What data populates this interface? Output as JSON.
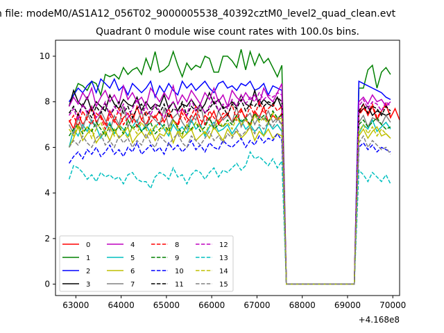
{
  "figure": {
    "suptitle": "n file: modeM0/AS1A12_056T02_9000005538_40392cztM0_level2_quad_clean.evt",
    "title": "Quadrant 0 module wise count rates with 100.0s bins.",
    "offset_text": "+4.168e8"
  },
  "chart_data": {
    "type": "line",
    "title": "Quadrant 0 module wise count rates with 100.0s bins.",
    "xlabel": "",
    "ylabel": "",
    "x_offset": 416800000,
    "xlim": [
      62550,
      70150
    ],
    "ylim": [
      -0.5,
      10.7
    ],
    "xticks": [
      63000,
      64000,
      65000,
      66000,
      67000,
      68000,
      69000,
      70000
    ],
    "xtick_labels": [
      "63000",
      "64000",
      "65000",
      "66000",
      "67000",
      "68000",
      "69000",
      "70000"
    ],
    "yticks": [
      0,
      2,
      4,
      6,
      8,
      10
    ],
    "ytick_labels": [
      "0",
      "2",
      "4",
      "6",
      "8",
      "10"
    ],
    "grid": false,
    "legend_position": "lower-left",
    "legend_columns": 4,
    "bin_seconds": 100,
    "x_start": 62850,
    "x_step": 100,
    "series": [
      {
        "name": "0",
        "color": "#ff0000",
        "dash": "solid",
        "values": [
          7.2,
          6.8,
          7.5,
          7.0,
          7.3,
          7.8,
          7.1,
          7.4,
          7.0,
          7.6,
          7.2,
          6.9,
          7.3,
          7.5,
          7.1,
          7.8,
          7.2,
          7.0,
          7.4,
          7.3,
          7.6,
          7.1,
          7.5,
          7.2,
          7.0,
          7.7,
          7.3,
          7.1,
          7.5,
          6.9,
          7.4,
          7.2,
          7.6,
          7.0,
          7.3,
          7.5,
          7.1,
          7.4,
          7.7,
          7.2,
          7.0,
          7.6,
          7.3,
          7.8,
          7.1,
          7.4,
          7.2,
          7.5,
          0,
          0,
          0,
          0,
          0,
          0,
          0,
          0,
          0,
          0,
          0,
          0,
          0,
          0,
          0,
          0,
          7.5,
          7.9,
          7.4,
          7.8,
          7.2,
          7.6,
          7.9,
          7.3,
          7.7,
          7.2
        ]
      },
      {
        "name": "1",
        "color": "#008000",
        "dash": "solid",
        "values": [
          7.8,
          8.3,
          8.8,
          8.7,
          8.5,
          8.9,
          8.8,
          8.3,
          9.2,
          9.1,
          9.2,
          9.0,
          9.5,
          9.2,
          9.4,
          9.5,
          9.2,
          9.9,
          9.4,
          10.2,
          9.3,
          9.4,
          9.6,
          10.2,
          9.6,
          9.1,
          9.7,
          9.4,
          9.6,
          9.5,
          10.0,
          9.9,
          9.3,
          9.3,
          10.0,
          10.0,
          9.8,
          9.5,
          10.3,
          9.4,
          10.2,
          9.6,
          10.1,
          9.7,
          9.9,
          9.5,
          9.1,
          9.6,
          0,
          0,
          0,
          0,
          0,
          0,
          0,
          0,
          0,
          0,
          0,
          0,
          0,
          0,
          0,
          0,
          8.6,
          8.6,
          9.4,
          9.6,
          8.6,
          9.3,
          9.5,
          9.2
        ]
      },
      {
        "name": "2",
        "color": "#0000ff",
        "dash": "solid",
        "values": [
          8.0,
          8.3,
          8.6,
          8.4,
          8.7,
          8.9,
          8.4,
          9.0,
          8.8,
          8.6,
          9.0,
          8.5,
          8.7,
          8.3,
          8.8,
          8.6,
          8.4,
          8.6,
          8.9,
          8.2,
          8.7,
          8.4,
          8.8,
          8.5,
          8.3,
          8.9,
          8.6,
          8.8,
          8.5,
          8.7,
          8.9,
          8.6,
          8.4,
          8.8,
          8.9,
          8.6,
          8.7,
          8.5,
          8.8,
          8.7,
          8.9,
          8.5,
          8.6,
          8.8,
          8.3,
          8.7,
          8.6,
          8.5,
          0,
          0,
          0,
          0,
          0,
          0,
          0,
          0,
          0,
          0,
          0,
          0,
          0,
          0,
          0,
          0,
          8.9,
          8.8,
          8.7,
          8.6,
          8.5,
          8.4,
          8.2,
          8.1
        ]
      },
      {
        "name": "3",
        "color": "#000000",
        "dash": "solid",
        "values": [
          7.8,
          8.5,
          8.0,
          7.8,
          8.2,
          7.6,
          8.0,
          7.8,
          7.6,
          8.3,
          7.9,
          7.7,
          8.1,
          7.9,
          7.8,
          8.2,
          7.6,
          8.0,
          7.7,
          7.9,
          7.8,
          8.3,
          7.7,
          8.0,
          7.6,
          7.9,
          7.8,
          8.1,
          7.8,
          7.6,
          7.9,
          8.4,
          7.9,
          8.1,
          7.7,
          7.8,
          8.0,
          7.8,
          8.3,
          7.9,
          7.8,
          8.5,
          7.8,
          8.1,
          7.9,
          7.8,
          8.2,
          7.7,
          0,
          0,
          0,
          0,
          0,
          0,
          0,
          0,
          0,
          0,
          0,
          0,
          0,
          0,
          0,
          0,
          7.5,
          7.7,
          7.8,
          7.4,
          7.6,
          7.5,
          7.4,
          7.5
        ]
      },
      {
        "name": "4",
        "color": "#bf00bf",
        "dash": "solid",
        "values": [
          7.8,
          8.2,
          7.9,
          8.4,
          8.1,
          8.6,
          7.8,
          8.2,
          8.5,
          8.0,
          8.3,
          7.9,
          8.7,
          8.1,
          8.4,
          8.0,
          8.2,
          7.8,
          8.6,
          8.3,
          8.0,
          8.4,
          8.1,
          8.7,
          7.9,
          8.3,
          8.0,
          8.5,
          8.2,
          7.9,
          8.4,
          8.1,
          8.6,
          8.0,
          8.3,
          7.8,
          8.5,
          8.2,
          8.0,
          8.4,
          8.1,
          8.3,
          7.9,
          8.6,
          8.2,
          8.0,
          8.4,
          8.8,
          0,
          0,
          0,
          0,
          0,
          0,
          0,
          0,
          0,
          0,
          0,
          0,
          0,
          0,
          0,
          0,
          8.0,
          8.2,
          7.9,
          8.3,
          8.0,
          8.1,
          7.8,
          8.0
        ]
      },
      {
        "name": "5",
        "color": "#00bfbf",
        "dash": "solid",
        "values": [
          6.0,
          6.8,
          6.5,
          7.0,
          6.7,
          7.2,
          6.9,
          6.4,
          6.8,
          7.1,
          6.6,
          7.0,
          6.8,
          6.5,
          6.9,
          7.2,
          6.7,
          7.0,
          6.6,
          6.9,
          7.1,
          6.8,
          6.5,
          7.0,
          6.7,
          6.9,
          6.6,
          7.2,
          6.8,
          7.0,
          6.5,
          6.9,
          7.1,
          6.7,
          6.8,
          7.0,
          6.6,
          6.9,
          7.2,
          6.8,
          7.0,
          6.7,
          6.9,
          6.5,
          7.1,
          6.8,
          7.0,
          6.7,
          0,
          0,
          0,
          0,
          0,
          0,
          0,
          0,
          0,
          0,
          0,
          0,
          0,
          0,
          0,
          0,
          6.6,
          7.0,
          6.8,
          7.2,
          6.7,
          6.9,
          7.1,
          6.8
        ]
      },
      {
        "name": "6",
        "color": "#bfbf00",
        "dash": "solid",
        "values": [
          6.0,
          6.4,
          6.9,
          6.3,
          6.6,
          6.8,
          6.2,
          6.5,
          6.7,
          6.3,
          6.8,
          6.4,
          6.6,
          6.9,
          6.2,
          6.5,
          6.7,
          6.4,
          6.8,
          6.3,
          6.6,
          6.5,
          6.9,
          6.2,
          6.7,
          6.4,
          6.6,
          6.8,
          6.3,
          6.5,
          6.7,
          6.4,
          6.9,
          6.6,
          6.3,
          6.8,
          6.5,
          6.7,
          6.4,
          6.6,
          6.9,
          6.3,
          6.7,
          6.5,
          6.8,
          6.4,
          6.6,
          6.5,
          0,
          0,
          0,
          0,
          0,
          0,
          0,
          0,
          0,
          0,
          0,
          0,
          0,
          0,
          0,
          0,
          6.5,
          6.8,
          6.4,
          6.7,
          6.9,
          6.5,
          6.6,
          6.4
        ]
      },
      {
        "name": "7",
        "color": "#808080",
        "dash": "solid",
        "values": [
          7.0,
          6.6,
          7.3,
          6.8,
          7.5,
          7.1,
          6.9,
          7.6,
          7.2,
          6.7,
          7.4,
          7.0,
          7.8,
          6.9,
          7.3,
          7.1,
          7.6,
          6.8,
          7.4,
          7.2,
          7.0,
          7.7,
          6.9,
          7.3,
          7.5,
          7.1,
          6.8,
          7.4,
          7.2,
          7.9,
          7.0,
          7.3,
          6.9,
          7.6,
          7.2,
          7.4,
          7.1,
          7.8,
          6.9,
          7.3,
          7.5,
          7.0,
          7.4,
          7.2,
          7.6,
          7.1,
          7.3,
          7.0,
          0,
          0,
          0,
          0,
          0,
          0,
          0,
          0,
          0,
          0,
          0,
          0,
          0,
          0,
          0,
          0,
          7.1,
          7.4,
          6.9,
          7.3,
          7.2,
          7.0,
          7.4,
          7.1
        ]
      },
      {
        "name": "8",
        "color": "#ff0000",
        "dash": "dashed",
        "values": [
          7.1,
          7.4,
          6.9,
          7.6,
          7.2,
          7.0,
          7.5,
          7.3,
          6.8,
          7.4,
          7.1,
          7.7,
          7.0,
          7.3,
          7.5,
          6.9,
          7.2,
          7.6,
          7.1,
          7.4,
          7.0,
          7.3,
          7.7,
          7.2,
          6.9,
          7.5,
          7.1,
          7.4,
          7.8,
          7.2,
          7.0,
          7.6,
          7.3,
          7.1,
          7.5,
          7.4,
          7.9,
          7.2,
          7.6,
          7.3,
          7.8,
          7.4,
          8.0,
          7.5,
          7.7,
          7.9,
          7.6,
          7.8,
          0,
          0,
          0,
          0,
          0,
          0,
          0,
          0,
          0,
          0,
          0,
          0,
          0,
          0,
          0,
          0,
          7.4,
          7.7,
          7.5,
          7.9,
          7.3,
          7.6,
          7.8,
          7.4
        ]
      },
      {
        "name": "9",
        "color": "#008000",
        "dash": "dashed",
        "values": [
          6.5,
          6.8,
          7.0,
          6.6,
          6.9,
          6.7,
          7.1,
          6.8,
          6.5,
          7.0,
          6.7,
          6.9,
          6.6,
          7.2,
          6.8,
          7.0,
          6.7,
          6.9,
          7.1,
          6.6,
          6.8,
          7.0,
          6.7,
          7.2,
          6.9,
          6.6,
          7.0,
          6.8,
          7.1,
          6.7,
          6.9,
          7.3,
          6.8,
          7.0,
          6.9,
          7.2,
          7.0,
          7.4,
          7.1,
          7.3,
          7.0,
          7.5,
          7.2,
          7.4,
          7.1,
          7.6,
          7.3,
          7.4,
          0,
          0,
          0,
          0,
          0,
          0,
          0,
          0,
          0,
          0,
          0,
          0,
          0,
          0,
          0,
          0,
          7.0,
          7.2,
          6.9,
          7.1,
          7.3,
          7.0,
          6.8,
          6.9
        ]
      },
      {
        "name": "10",
        "color": "#0000ff",
        "dash": "dashed",
        "values": [
          5.3,
          5.6,
          5.8,
          5.5,
          5.9,
          5.7,
          6.0,
          5.6,
          5.8,
          6.1,
          5.7,
          5.9,
          5.6,
          6.0,
          5.8,
          6.2,
          5.7,
          5.9,
          6.1,
          5.8,
          6.0,
          5.7,
          6.2,
          5.9,
          6.1,
          5.8,
          6.0,
          6.3,
          5.9,
          6.1,
          5.8,
          6.2,
          6.0,
          5.9,
          6.3,
          6.1,
          6.0,
          6.2,
          6.4,
          6.0,
          6.3,
          6.1,
          6.5,
          6.2,
          6.4,
          6.3,
          6.6,
          6.3,
          0,
          0,
          0,
          0,
          0,
          0,
          0,
          0,
          0,
          0,
          0,
          0,
          0,
          0,
          0,
          0,
          6.0,
          6.2,
          5.9,
          6.1,
          5.8,
          6.0,
          5.9,
          5.8
        ]
      },
      {
        "name": "11",
        "color": "#000000",
        "dash": "dashed",
        "values": [
          7.5,
          7.8,
          7.4,
          7.9,
          7.6,
          7.3,
          7.8,
          7.5,
          7.9,
          7.4,
          7.7,
          8.0,
          7.5,
          7.8,
          7.3,
          7.7,
          7.9,
          7.4,
          7.6,
          7.8,
          7.5,
          7.9,
          7.3,
          7.7,
          7.6,
          8.0,
          7.4,
          7.8,
          7.6,
          7.9,
          7.5,
          7.7,
          8.0,
          7.6,
          7.8,
          7.4,
          7.9,
          7.7,
          8.1,
          7.6,
          7.9,
          7.8,
          8.1,
          7.8,
          8.0,
          7.9,
          8.2,
          8.0,
          0,
          0,
          0,
          0,
          0,
          0,
          0,
          0,
          0,
          0,
          0,
          0,
          0,
          0,
          0,
          0,
          7.6,
          7.9,
          7.5,
          7.8,
          7.7,
          7.4,
          7.8,
          7.6
        ]
      },
      {
        "name": "12",
        "color": "#bf00bf",
        "dash": "dashed",
        "values": [
          7.4,
          7.7,
          7.2,
          7.9,
          7.5,
          7.8,
          7.3,
          7.6,
          8.0,
          7.4,
          7.8,
          7.5,
          7.9,
          7.3,
          7.7,
          8.1,
          7.5,
          7.8,
          7.4,
          7.9,
          7.6,
          7.3,
          7.8,
          8.0,
          7.5,
          7.7,
          7.4,
          8.1,
          7.6,
          7.9,
          7.5,
          7.8,
          8.2,
          7.6,
          7.9,
          7.7,
          8.1,
          7.8,
          8.3,
          7.9,
          8.2,
          8.0,
          8.4,
          8.1,
          8.3,
          8.2,
          8.4,
          8.3,
          0,
          0,
          0,
          0,
          0,
          0,
          0,
          0,
          0,
          0,
          0,
          0,
          0,
          0,
          0,
          0,
          7.8,
          8.1,
          7.7,
          8.0,
          7.9,
          7.6,
          8.0,
          7.8
        ]
      },
      {
        "name": "13",
        "color": "#00bfbf",
        "dash": "dashed",
        "values": [
          4.6,
          5.2,
          5.1,
          4.9,
          4.6,
          4.8,
          4.5,
          4.9,
          4.7,
          4.8,
          4.6,
          4.7,
          4.4,
          4.8,
          4.9,
          4.6,
          4.5,
          4.5,
          4.2,
          4.7,
          4.9,
          4.8,
          4.6,
          5.1,
          4.7,
          4.8,
          4.4,
          4.8,
          5.0,
          4.9,
          4.6,
          4.9,
          5.1,
          4.7,
          5.0,
          4.9,
          5.1,
          5.3,
          5.0,
          5.2,
          5.8,
          5.5,
          5.6,
          5.4,
          5.2,
          5.5,
          5.1,
          5.4,
          0,
          0,
          0,
          0,
          0,
          0,
          0,
          0,
          0,
          0,
          0,
          0,
          0,
          0,
          0,
          0,
          5.0,
          4.8,
          4.5,
          4.9,
          4.7,
          4.5,
          4.8,
          4.4
        ]
      },
      {
        "name": "14",
        "color": "#bfbf00",
        "dash": "dashed",
        "values": [
          6.8,
          6.5,
          7.0,
          6.7,
          6.9,
          6.4,
          6.8,
          7.1,
          6.6,
          6.9,
          6.5,
          7.0,
          6.7,
          6.4,
          6.9,
          6.6,
          7.1,
          6.8,
          6.5,
          7.0,
          6.7,
          6.9,
          6.6,
          7.2,
          6.8,
          6.5,
          7.0,
          6.7,
          7.1,
          6.9,
          6.6,
          7.0,
          6.8,
          7.2,
          6.9,
          7.1,
          6.8,
          7.3,
          7.0,
          7.2,
          6.9,
          7.4,
          7.1,
          7.3,
          7.0,
          7.5,
          7.2,
          7.3,
          0,
          0,
          0,
          0,
          0,
          0,
          0,
          0,
          0,
          0,
          0,
          0,
          0,
          0,
          0,
          0,
          6.7,
          7.0,
          6.6,
          6.9,
          6.5,
          6.8,
          6.6,
          6.4
        ]
      },
      {
        "name": "15",
        "color": "#808080",
        "dash": "dashed",
        "values": [
          6.0,
          6.3,
          6.1,
          6.5,
          6.2,
          6.0,
          6.4,
          6.6,
          6.1,
          6.3,
          6.0,
          6.5,
          6.2,
          6.4,
          6.0,
          6.3,
          6.1,
          6.6,
          6.2,
          6.0,
          6.5,
          6.3,
          6.1,
          6.4,
          6.6,
          6.2,
          6.0,
          6.5,
          6.3,
          6.1,
          6.4,
          6.7,
          6.3,
          6.5,
          6.2,
          6.6,
          6.4,
          6.8,
          6.5,
          6.7,
          6.9,
          6.6,
          7.0,
          6.8,
          7.1,
          6.9,
          7.2,
          7.0,
          0,
          0,
          0,
          0,
          0,
          0,
          0,
          0,
          0,
          0,
          0,
          0,
          0,
          0,
          0,
          0,
          6.2,
          6.5,
          6.0,
          6.3,
          6.1,
          5.9,
          6.0,
          5.7
        ]
      }
    ]
  }
}
